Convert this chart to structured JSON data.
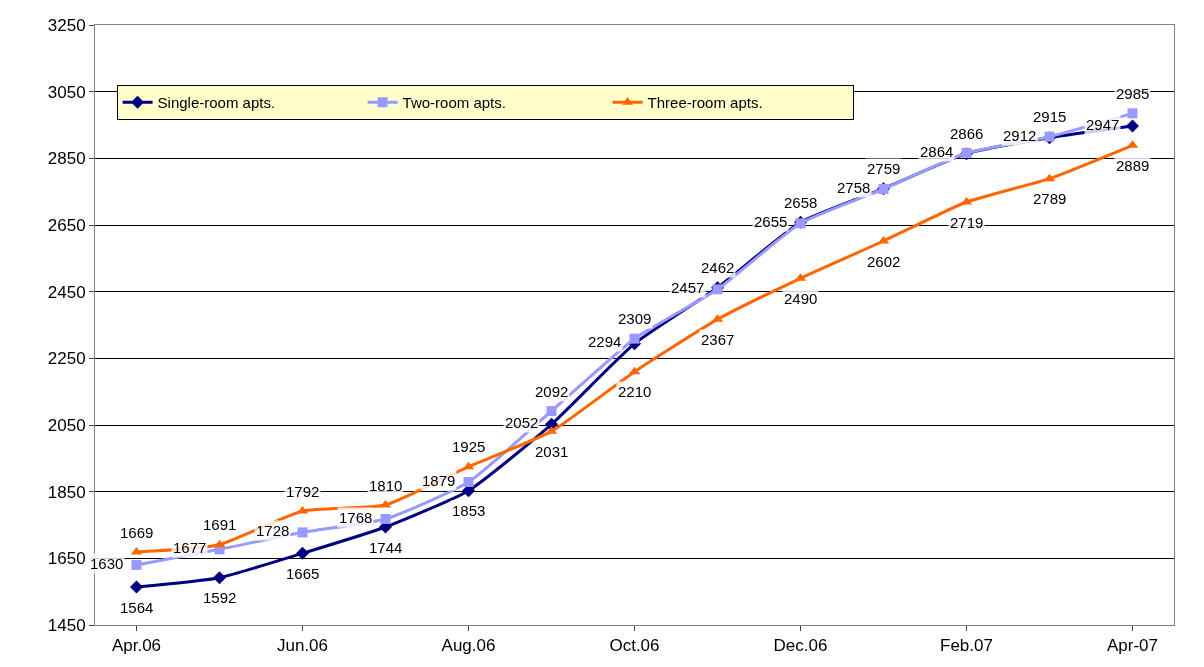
{
  "chart_data": {
    "type": "line",
    "categories": [
      "Apr.06",
      null,
      "Jun.06",
      null,
      "Aug.06",
      null,
      "Oct.06",
      null,
      "Dec.06",
      null,
      "Feb.07",
      null,
      "Apr-07"
    ],
    "series": [
      {
        "name": "Single-room apts.",
        "color": "#000080",
        "marker": "diamond",
        "values": [
          1564,
          1592,
          1665,
          1744,
          1853,
          2052,
          2294,
          2462,
          2658,
          2759,
          2864,
          2912,
          2947
        ]
      },
      {
        "name": "Two-room apts.",
        "color": "#9999ff",
        "marker": "square",
        "values": [
          1630,
          1677,
          1728,
          1768,
          1879,
          2092,
          2309,
          2457,
          2655,
          2758,
          2866,
          2915,
          2985
        ]
      },
      {
        "name": "Three-room apts.",
        "color": "#ff6600",
        "marker": "triangle",
        "values": [
          1669,
          1691,
          1792,
          1810,
          1925,
          2031,
          2210,
          2367,
          2490,
          2602,
          2719,
          2789,
          2889
        ]
      }
    ],
    "ylim": [
      1450,
      3250
    ],
    "yticks": [
      1450,
      1650,
      1850,
      2050,
      2250,
      2450,
      2650,
      2850,
      3050,
      3250
    ],
    "grid": "y",
    "legend": "top left",
    "data_labels": true
  }
}
